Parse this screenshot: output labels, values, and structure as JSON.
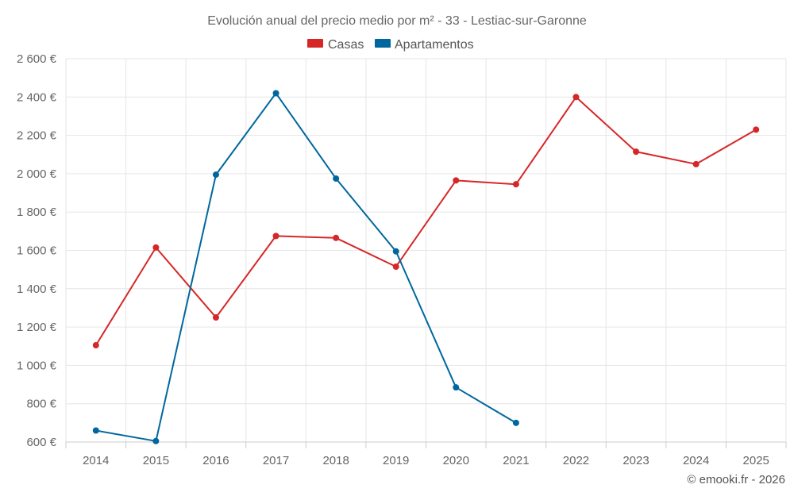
{
  "chart_data": {
    "type": "line",
    "title": "Evolución anual del precio medio por m² - 33 - Lestiac-sur-Garonne",
    "categories": [
      "2014",
      "2015",
      "2016",
      "2017",
      "2018",
      "2019",
      "2020",
      "2021",
      "2022",
      "2023",
      "2024",
      "2025"
    ],
    "series": [
      {
        "name": "Casas",
        "color": "#d62728",
        "values": [
          1105,
          1615,
          1250,
          1675,
          1665,
          1515,
          1965,
          1945,
          2400,
          2115,
          2050,
          2230
        ]
      },
      {
        "name": "Apartamentos",
        "color": "#00679e",
        "values": [
          660,
          605,
          1995,
          2420,
          1975,
          1595,
          885,
          700,
          null,
          null,
          null,
          null
        ]
      }
    ],
    "ylim": [
      600,
      2600
    ],
    "yticks": [
      600,
      800,
      1000,
      1200,
      1400,
      1600,
      1800,
      2000,
      2200,
      2400,
      2600
    ],
    "ytick_labels": [
      "600 €",
      "800 €",
      "1 000 €",
      "1 200 €",
      "1 400 €",
      "1 600 €",
      "1 800 €",
      "2 000 €",
      "2 200 €",
      "2 400 €",
      "2 600 €"
    ],
    "xlabel": "",
    "ylabel": "",
    "grid": true,
    "legend_position": "top-center"
  },
  "credit": "© emooki.fr - 2026"
}
